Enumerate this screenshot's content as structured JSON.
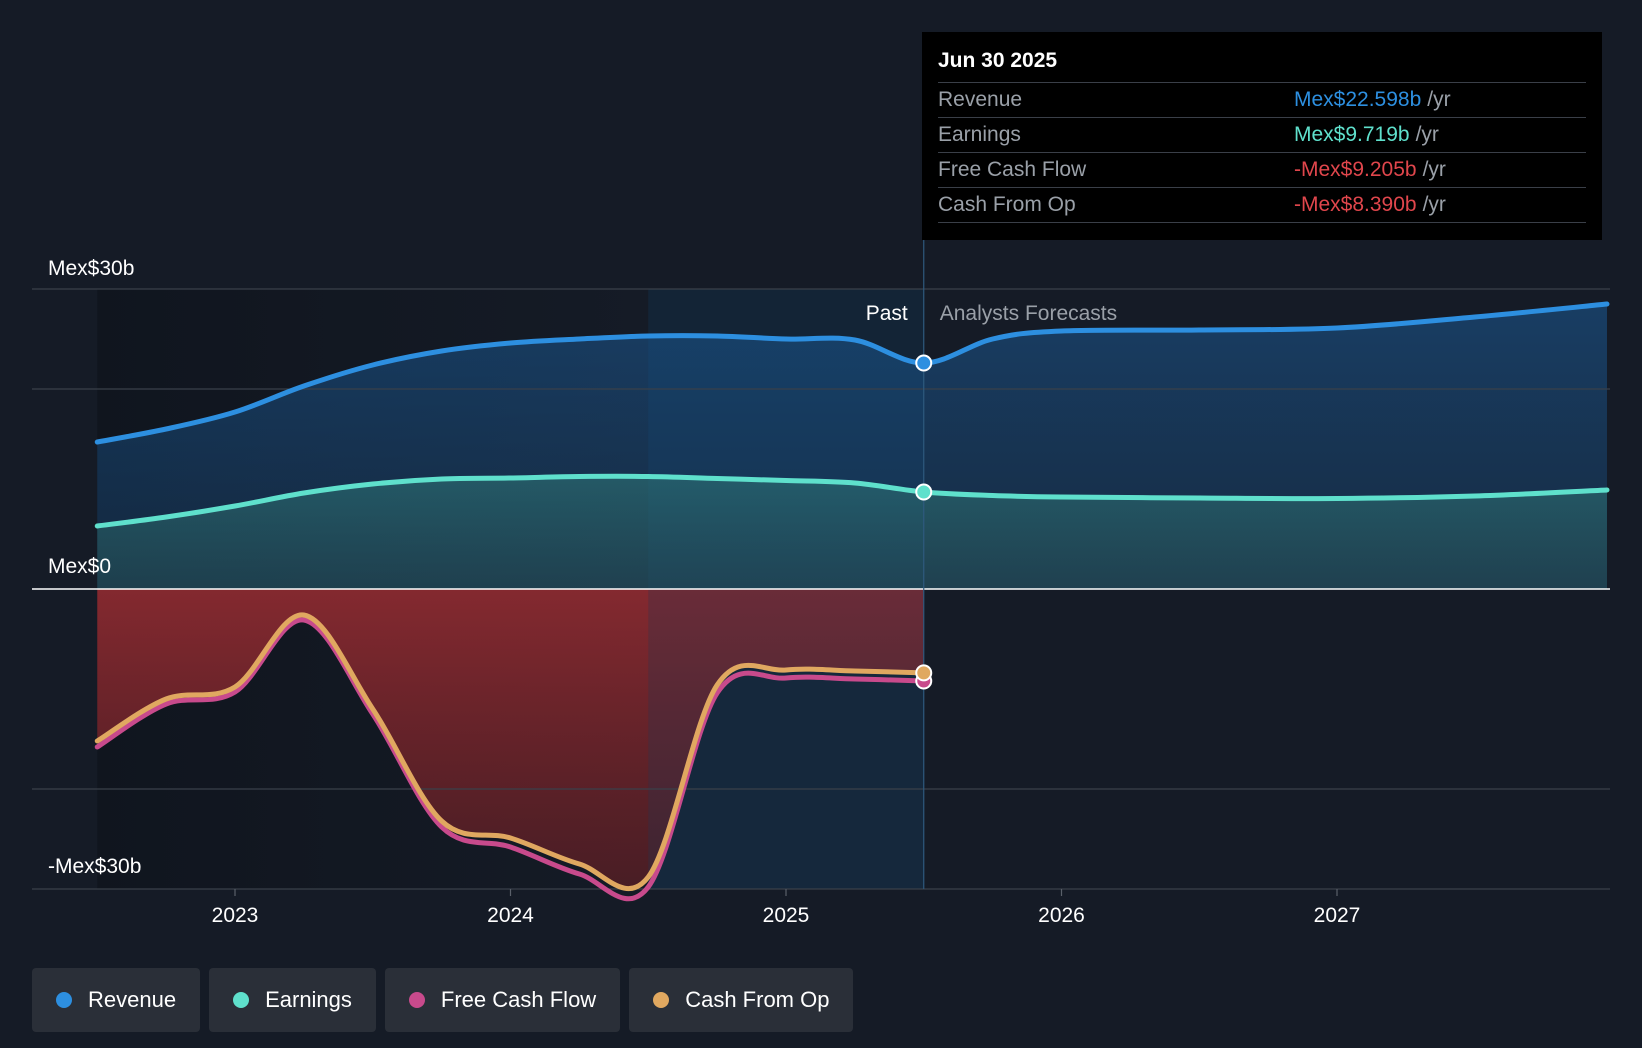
{
  "chart_data": {
    "type": "area",
    "x_axis": {
      "ticks": [
        "2023",
        "2024",
        "2025",
        "2026",
        "2027"
      ],
      "range": [
        2022.5,
        2027.98
      ]
    },
    "y_axis": {
      "range": [
        -30,
        30
      ],
      "labels": {
        "top": "Mex$30b",
        "zero": "Mex$0",
        "bottom": "-Mex$30b"
      },
      "unit": "billions MXN"
    },
    "divider": {
      "x": 2025.5,
      "past_label": "Past",
      "forecast_label": "Analysts Forecasts"
    },
    "series": [
      {
        "name": "Revenue",
        "color": "#2d8fe0",
        "points": [
          [
            2022.5,
            14.7
          ],
          [
            2022.75,
            16
          ],
          [
            2023,
            17.7
          ],
          [
            2023.25,
            20.3
          ],
          [
            2023.5,
            22.4
          ],
          [
            2023.75,
            23.8
          ],
          [
            2024,
            24.6
          ],
          [
            2024.25,
            25.0
          ],
          [
            2024.5,
            25.3
          ],
          [
            2024.75,
            25.3
          ],
          [
            2025,
            25.0
          ],
          [
            2025.25,
            24.9
          ],
          [
            2025.5,
            22.6
          ],
          [
            2025.75,
            25
          ],
          [
            2026,
            25.8
          ],
          [
            2026.5,
            25.9
          ],
          [
            2027,
            26.1
          ],
          [
            2027.5,
            27.2
          ],
          [
            2027.98,
            28.5
          ]
        ]
      },
      {
        "name": "Earnings",
        "color": "#5fe0cc",
        "points": [
          [
            2022.5,
            6.3
          ],
          [
            2022.75,
            7.2
          ],
          [
            2023,
            8.3
          ],
          [
            2023.25,
            9.6
          ],
          [
            2023.5,
            10.5
          ],
          [
            2023.75,
            11.0
          ],
          [
            2024,
            11.1
          ],
          [
            2024.25,
            11.25
          ],
          [
            2024.5,
            11.25
          ],
          [
            2024.75,
            11.05
          ],
          [
            2025,
            10.85
          ],
          [
            2025.25,
            10.6
          ],
          [
            2025.5,
            9.7
          ],
          [
            2025.75,
            9.35
          ],
          [
            2026,
            9.2
          ],
          [
            2026.5,
            9.1
          ],
          [
            2027,
            9.05
          ],
          [
            2027.5,
            9.3
          ],
          [
            2027.98,
            9.9
          ]
        ]
      },
      {
        "name": "Free Cash Flow",
        "color": "#c84a8c",
        "points": [
          [
            2022.5,
            -15.8
          ],
          [
            2022.75,
            -11.5
          ],
          [
            2023,
            -10.3
          ],
          [
            2023.25,
            -3.1
          ],
          [
            2023.5,
            -12.5
          ],
          [
            2023.75,
            -23.8
          ],
          [
            2024,
            -25.8
          ],
          [
            2024.25,
            -28.5
          ],
          [
            2024.5,
            -29.8
          ],
          [
            2024.75,
            -10.4
          ],
          [
            2025,
            -8.9
          ],
          [
            2025.25,
            -9.0
          ],
          [
            2025.5,
            -9.2
          ]
        ]
      },
      {
        "name": "Cash From Op",
        "color": "#e0a860",
        "points": [
          [
            2022.5,
            -15.2
          ],
          [
            2022.75,
            -11.0
          ],
          [
            2023,
            -9.8
          ],
          [
            2023.25,
            -2.6
          ],
          [
            2023.5,
            -12.0
          ],
          [
            2023.75,
            -23.2
          ],
          [
            2024,
            -24.9
          ],
          [
            2024.25,
            -27.5
          ],
          [
            2024.5,
            -28.8
          ],
          [
            2024.75,
            -9.6
          ],
          [
            2025,
            -8.1
          ],
          [
            2025.25,
            -8.2
          ],
          [
            2025.5,
            -8.39
          ]
        ]
      }
    ]
  },
  "tooltip": {
    "date": "Jun 30 2025",
    "rows": [
      {
        "label": "Revenue",
        "value": "Mex$22.598b",
        "unit": "/yr",
        "color": "#2d8fe0"
      },
      {
        "label": "Earnings",
        "value": "Mex$9.719b",
        "unit": "/yr",
        "color": "#5fe0cc"
      },
      {
        "label": "Free Cash Flow",
        "value": "-Mex$9.205b",
        "unit": "/yr",
        "color": "#e0464c"
      },
      {
        "label": "Cash From Op",
        "value": "-Mex$8.390b",
        "unit": "/yr",
        "color": "#e0464c"
      }
    ]
  },
  "legend": [
    {
      "label": "Revenue",
      "color": "#2d8fe0"
    },
    {
      "label": "Earnings",
      "color": "#5fe0cc"
    },
    {
      "label": "Free Cash Flow",
      "color": "#c84a8c"
    },
    {
      "label": "Cash From Op",
      "color": "#e0a860"
    }
  ]
}
